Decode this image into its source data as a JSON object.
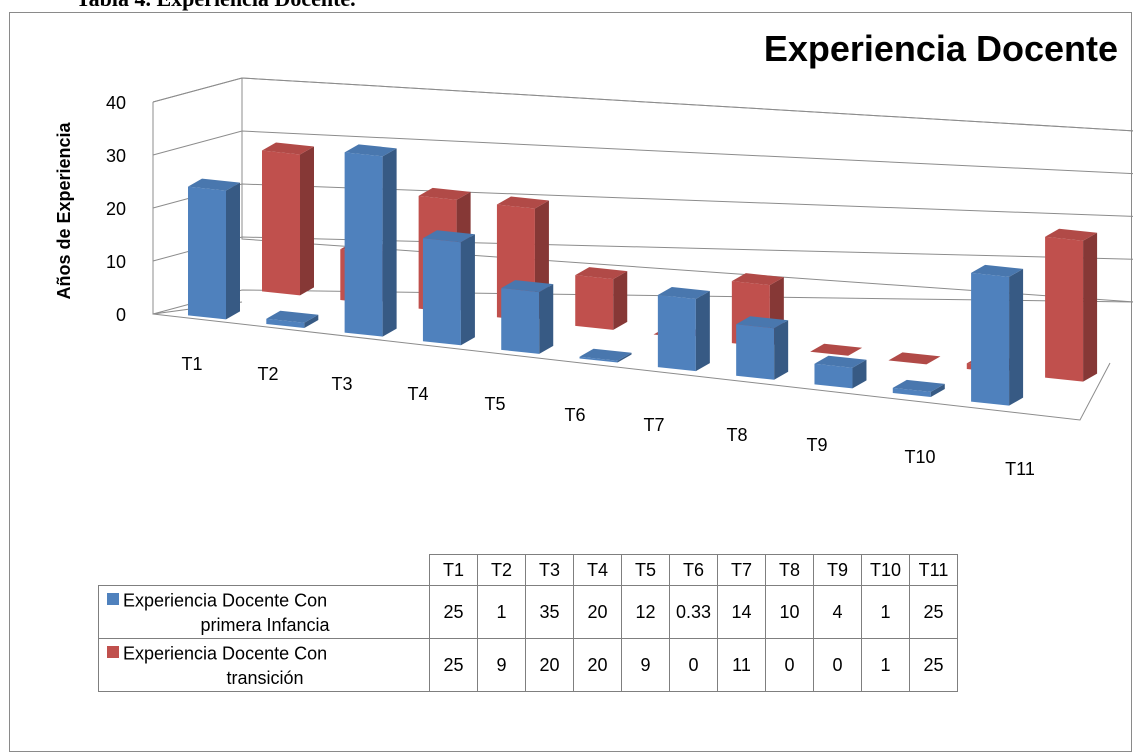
{
  "caption": "Tabla 4. Experiencia Docente.",
  "chart_data": {
    "type": "bar",
    "title": "Experiencia Docente",
    "ylabel": "Años de Experiencia",
    "xlabel": "",
    "ylim": [
      0,
      40
    ],
    "yticks": [
      0,
      10,
      20,
      30,
      40
    ],
    "categories": [
      "T1",
      "T2",
      "T3",
      "T4",
      "T5",
      "T6",
      "T7",
      "T8",
      "T9",
      "T10",
      "T11"
    ],
    "series": [
      {
        "name": "Experiencia Docente  Con primera Infancia",
        "name_line1": "Experiencia Docente  Con",
        "name_line2": "primera Infancia",
        "color": "#4f81bd",
        "values": [
          25,
          1,
          35,
          20,
          12,
          0.33,
          14,
          10,
          4,
          1,
          25
        ],
        "labels": [
          "25",
          "1",
          "35",
          "20",
          "12",
          "0.33",
          "14",
          "10",
          "4",
          "1",
          "25"
        ]
      },
      {
        "name": "Experiencia Docente  Con transición",
        "name_line1": "Experiencia Docente  Con",
        "name_line2": "transición",
        "color": "#c0504d",
        "values": [
          25,
          9,
          20,
          20,
          9,
          0,
          11,
          0,
          0,
          1,
          25
        ],
        "labels": [
          "25",
          "9",
          "20",
          "20",
          "9",
          "0",
          "11",
          "0",
          "0",
          "1",
          "25"
        ]
      }
    ],
    "grid": true,
    "legend": "bottom data table",
    "projection": "3d-column"
  }
}
